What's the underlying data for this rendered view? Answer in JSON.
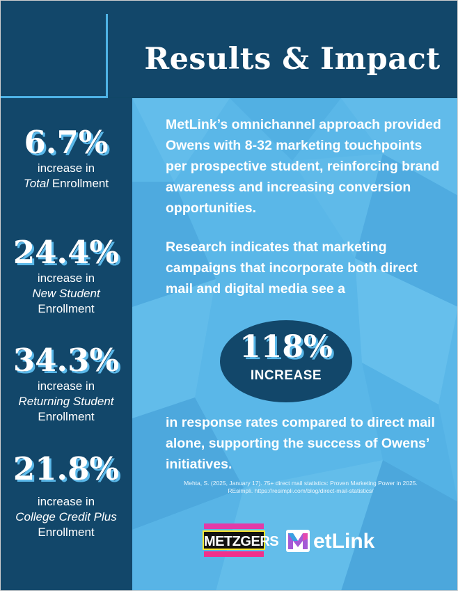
{
  "title": "Results & Impact",
  "stats": [
    {
      "value": "6.7%",
      "label_pre": "increase in",
      "label_em": "Total",
      "label_post": "Enrollment"
    },
    {
      "value": "24.4%",
      "label_pre": "increase in",
      "label_em": "New Student",
      "label_post": "Enrollment"
    },
    {
      "value": "34.3%",
      "label_pre": "increase in",
      "label_em": "Returning Student",
      "label_post": "Enrollment"
    },
    {
      "value": "21.8%",
      "label_pre": "increase in",
      "label_em": "College Credit Plus",
      "label_post": "Enrollment"
    }
  ],
  "main": {
    "para1": "MetLink’s omnichannel approach provided Owens with 8-32 marketing touchpoints per prospective student, reinforcing brand awareness and increasing conversion opportunities.",
    "para2": "Research indicates that marketing campaigns that incorporate both direct mail and digital media see a",
    "highlight_value": "118%",
    "highlight_label": "INCREASE",
    "para3": "in response rates compared to direct mail alone, supporting the success of Owens’ initiatives.",
    "citation": "Mehta, S. (2025, January 17). 75+ direct mail statistics: Proven Marketing Power in 2025. REsimpli. https://resimpli.com/blog/direct-mail-statistics/"
  },
  "logos": {
    "metzgers": "METZGERS",
    "metlink": "etLink"
  },
  "colors": {
    "navy": "#12476a",
    "sky": "#5ab7e8",
    "accent_line": "#4eb3e6",
    "shadow": "#5ab8e9"
  }
}
